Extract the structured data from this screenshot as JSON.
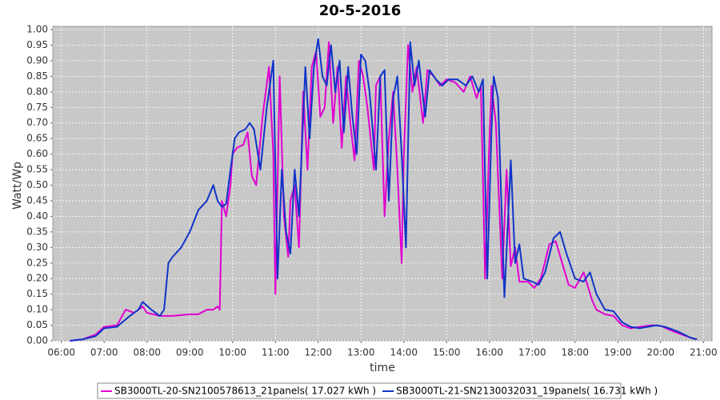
{
  "chart_data": {
    "type": "line",
    "title": "20-5-2016",
    "x_label": "time",
    "y_label": "Watt/Wp",
    "xlim": [
      5.8,
      21.2
    ],
    "ylim": [
      0,
      1.0
    ],
    "grid": true,
    "legend": "bottom",
    "background": "#c8c8c8",
    "xticks": [
      {
        "value": 6,
        "label": "06:00"
      },
      {
        "value": 7,
        "label": "07:00"
      },
      {
        "value": 8,
        "label": "08:00"
      },
      {
        "value": 9,
        "label": "09:00"
      },
      {
        "value": 10,
        "label": "10:00"
      },
      {
        "value": 11,
        "label": "11:00"
      },
      {
        "value": 12,
        "label": "12:00"
      },
      {
        "value": 13,
        "label": "13:00"
      },
      {
        "value": 14,
        "label": "14:00"
      },
      {
        "value": 15,
        "label": "15:00"
      },
      {
        "value": 16,
        "label": "16:00"
      },
      {
        "value": 17,
        "label": "17:00"
      },
      {
        "value": 18,
        "label": "18:00"
      },
      {
        "value": 19,
        "label": "19:00"
      },
      {
        "value": 20,
        "label": "20:00"
      },
      {
        "value": 21,
        "label": "21:00"
      }
    ],
    "yticks": [
      {
        "value": 0,
        "label": "0.00"
      },
      {
        "value": 0.05,
        "label": "0.05"
      },
      {
        "value": 0.1,
        "label": "0.10"
      },
      {
        "value": 0.15,
        "label": "0.15"
      },
      {
        "value": 0.2,
        "label": "0.20"
      },
      {
        "value": 0.25,
        "label": "0.25"
      },
      {
        "value": 0.3,
        "label": "0.30"
      },
      {
        "value": 0.35,
        "label": "0.35"
      },
      {
        "value": 0.4,
        "label": "0.40"
      },
      {
        "value": 0.45,
        "label": "0.45"
      },
      {
        "value": 0.5,
        "label": "0.50"
      },
      {
        "value": 0.55,
        "label": "0.55"
      },
      {
        "value": 0.6,
        "label": "0.60"
      },
      {
        "value": 0.65,
        "label": "0.65"
      },
      {
        "value": 0.7,
        "label": "0.70"
      },
      {
        "value": 0.75,
        "label": "0.75"
      },
      {
        "value": 0.8,
        "label": "0.80"
      },
      {
        "value": 0.85,
        "label": "0.85"
      },
      {
        "value": 0.9,
        "label": "0.90"
      },
      {
        "value": 0.95,
        "label": "0.95"
      },
      {
        "value": 1.0,
        "label": "1.00"
      }
    ],
    "series": [
      {
        "name": "SB3000TL-20-SN2100578613_21panels( 17.027 kWh )",
        "color": "#e000d0",
        "x": [
          6.2,
          6.5,
          6.8,
          7.0,
          7.3,
          7.5,
          7.7,
          7.9,
          8.0,
          8.3,
          8.6,
          9.0,
          9.2,
          9.4,
          9.55,
          9.65,
          9.7,
          9.75,
          9.85,
          9.95,
          10.0,
          10.1,
          10.25,
          10.35,
          10.45,
          10.55,
          10.7,
          10.85,
          10.95,
          11.0,
          11.1,
          11.2,
          11.3,
          11.35,
          11.45,
          11.55,
          11.65,
          11.75,
          11.85,
          11.95,
          12.05,
          12.15,
          12.25,
          12.35,
          12.45,
          12.55,
          12.65,
          12.75,
          12.85,
          12.95,
          13.05,
          13.15,
          13.3,
          13.35,
          13.45,
          13.55,
          13.65,
          13.75,
          13.85,
          13.95,
          14.0,
          14.1,
          14.2,
          14.3,
          14.45,
          14.55,
          14.7,
          14.85,
          15.0,
          15.2,
          15.4,
          15.55,
          15.7,
          15.8,
          15.9,
          16.0,
          16.05,
          16.15,
          16.3,
          16.4,
          16.5,
          16.6,
          16.7,
          16.9,
          17.05,
          17.2,
          17.4,
          17.55,
          17.7,
          17.85,
          18.0,
          18.2,
          18.4,
          18.5,
          18.7,
          18.9,
          19.1,
          19.3,
          19.5,
          19.8,
          20.0,
          20.3,
          20.6,
          20.8
        ],
        "values": [
          0.0,
          0.005,
          0.02,
          0.045,
          0.05,
          0.1,
          0.09,
          0.11,
          0.09,
          0.08,
          0.08,
          0.085,
          0.085,
          0.1,
          0.1,
          0.11,
          0.1,
          0.45,
          0.4,
          0.5,
          0.6,
          0.62,
          0.63,
          0.67,
          0.53,
          0.5,
          0.72,
          0.88,
          0.6,
          0.15,
          0.85,
          0.4,
          0.27,
          0.45,
          0.5,
          0.3,
          0.8,
          0.55,
          0.88,
          0.93,
          0.72,
          0.75,
          0.96,
          0.7,
          0.88,
          0.62,
          0.85,
          0.7,
          0.58,
          0.9,
          0.85,
          0.75,
          0.55,
          0.82,
          0.85,
          0.4,
          0.65,
          0.8,
          0.55,
          0.25,
          0.6,
          0.95,
          0.8,
          0.88,
          0.7,
          0.87,
          0.85,
          0.82,
          0.84,
          0.83,
          0.8,
          0.85,
          0.78,
          0.82,
          0.2,
          0.65,
          0.82,
          0.7,
          0.2,
          0.55,
          0.24,
          0.3,
          0.19,
          0.19,
          0.17,
          0.2,
          0.31,
          0.32,
          0.25,
          0.18,
          0.17,
          0.22,
          0.13,
          0.1,
          0.085,
          0.08,
          0.05,
          0.04,
          0.045,
          0.05,
          0.048,
          0.03,
          0.015,
          0.005
        ]
      },
      {
        "name": "SB3000TL-21-SN2130032031_19panels( 16.731 kWh )",
        "color": "#1034c8",
        "x": [
          6.2,
          6.5,
          6.8,
          7.0,
          7.3,
          7.6,
          7.8,
          7.9,
          8.1,
          8.3,
          8.4,
          8.5,
          8.6,
          8.8,
          9.0,
          9.2,
          9.4,
          9.55,
          9.65,
          9.75,
          9.85,
          9.95,
          10.05,
          10.15,
          10.3,
          10.4,
          10.5,
          10.65,
          10.8,
          10.95,
          11.05,
          11.15,
          11.25,
          11.35,
          11.45,
          11.55,
          11.7,
          11.8,
          11.9,
          12.0,
          12.1,
          12.2,
          12.3,
          12.4,
          12.5,
          12.6,
          12.7,
          12.8,
          12.9,
          13.0,
          13.1,
          13.2,
          13.35,
          13.45,
          13.55,
          13.65,
          13.75,
          13.85,
          13.95,
          14.05,
          14.15,
          14.25,
          14.35,
          14.5,
          14.6,
          14.75,
          14.9,
          15.05,
          15.25,
          15.45,
          15.6,
          15.75,
          15.85,
          15.95,
          16.05,
          16.1,
          16.2,
          16.35,
          16.5,
          16.6,
          16.7,
          16.8,
          17.0,
          17.15,
          17.3,
          17.5,
          17.65,
          17.8,
          18.0,
          18.2,
          18.35,
          18.5,
          18.7,
          18.9,
          19.1,
          19.3,
          19.5,
          19.7,
          19.9,
          20.1,
          20.4,
          20.7,
          20.85
        ],
        "values": [
          0.0,
          0.005,
          0.015,
          0.04,
          0.045,
          0.08,
          0.1,
          0.125,
          0.1,
          0.08,
          0.1,
          0.25,
          0.27,
          0.3,
          0.35,
          0.42,
          0.45,
          0.5,
          0.45,
          0.43,
          0.44,
          0.55,
          0.65,
          0.67,
          0.68,
          0.7,
          0.68,
          0.55,
          0.75,
          0.9,
          0.2,
          0.55,
          0.35,
          0.28,
          0.55,
          0.4,
          0.88,
          0.65,
          0.88,
          0.97,
          0.85,
          0.82,
          0.95,
          0.8,
          0.9,
          0.67,
          0.88,
          0.72,
          0.6,
          0.92,
          0.9,
          0.8,
          0.55,
          0.85,
          0.87,
          0.45,
          0.78,
          0.85,
          0.6,
          0.3,
          0.96,
          0.82,
          0.9,
          0.72,
          0.87,
          0.84,
          0.82,
          0.84,
          0.84,
          0.82,
          0.85,
          0.8,
          0.84,
          0.2,
          0.68,
          0.85,
          0.78,
          0.14,
          0.58,
          0.25,
          0.31,
          0.2,
          0.19,
          0.18,
          0.22,
          0.33,
          0.35,
          0.28,
          0.2,
          0.19,
          0.22,
          0.15,
          0.1,
          0.095,
          0.06,
          0.045,
          0.04,
          0.045,
          0.05,
          0.045,
          0.03,
          0.01,
          0.005
        ]
      }
    ]
  }
}
